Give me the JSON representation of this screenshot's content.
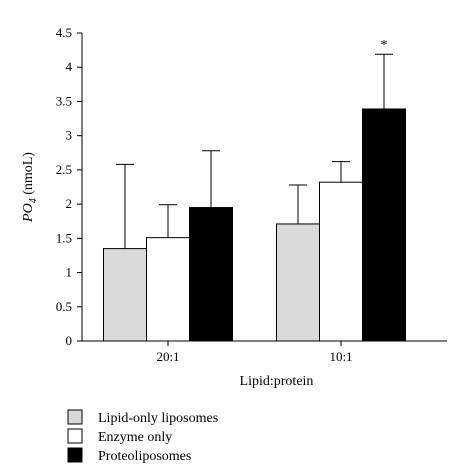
{
  "chart_data": {
    "type": "bar",
    "categories": [
      "20:1",
      "10:1"
    ],
    "series": [
      {
        "name": "Lipid-only liposomes",
        "values": [
          1.35,
          1.71
        ],
        "errors": [
          1.23,
          0.57
        ],
        "color": "#d9d9d9"
      },
      {
        "name": "Enzyme only",
        "values": [
          1.51,
          2.32
        ],
        "errors": [
          0.48,
          0.3
        ],
        "color": "#ffffff"
      },
      {
        "name": "Proteoliposomes",
        "values": [
          1.95,
          3.39
        ],
        "errors": [
          0.83,
          0.8
        ],
        "color": "#000000"
      }
    ],
    "xlabel": "Lipid:protein",
    "ylabel_main": "PO",
    "ylabel_sub": "4",
    "ylabel_unit": "(nmoL)",
    "ylim": [
      0,
      4.5
    ],
    "yticks": [
      "0",
      "0.5",
      "1",
      "1.5",
      "2",
      "2.5",
      "3",
      "3.5",
      "4",
      "4.5"
    ],
    "annotations": [
      {
        "category": "10:1",
        "series": "Proteoliposomes",
        "text": "*"
      }
    ],
    "grid": false,
    "legend_position": "bottom-left"
  }
}
